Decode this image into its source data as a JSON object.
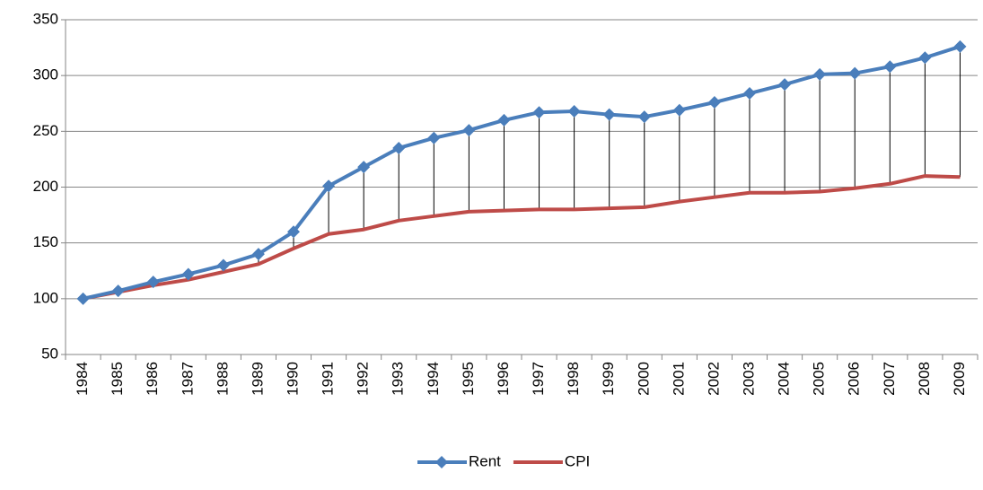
{
  "chart_data": {
    "type": "line",
    "categories": [
      "1984",
      "1985",
      "1986",
      "1987",
      "1988",
      "1989",
      "1990",
      "1991",
      "1992",
      "1993",
      "1994",
      "1995",
      "1996",
      "1997",
      "1998",
      "1999",
      "2000",
      "2001",
      "2002",
      "2003",
      "2004",
      "2005",
      "2006",
      "2007",
      "2008",
      "2009"
    ],
    "series": [
      {
        "name": "Rent",
        "color": "#4a7ebb",
        "marker": "diamond",
        "values": [
          100,
          107,
          115,
          122,
          130,
          140,
          160,
          201,
          218,
          235,
          244,
          251,
          260,
          267,
          268,
          265,
          263,
          269,
          276,
          284,
          292,
          301,
          302,
          308,
          316,
          326
        ]
      },
      {
        "name": "CPI",
        "color": "#be4b48",
        "values": [
          100,
          106,
          112,
          117,
          124,
          131,
          145,
          158,
          162,
          170,
          174,
          178,
          179,
          180,
          180,
          181,
          182,
          187,
          191,
          195,
          195,
          196,
          199,
          203,
          210,
          209
        ]
      }
    ],
    "ylim": [
      50,
      350
    ],
    "yticks": [
      50,
      100,
      150,
      200,
      250,
      300,
      350
    ],
    "grid": true,
    "drop_lines": true,
    "legend": "bottom"
  }
}
